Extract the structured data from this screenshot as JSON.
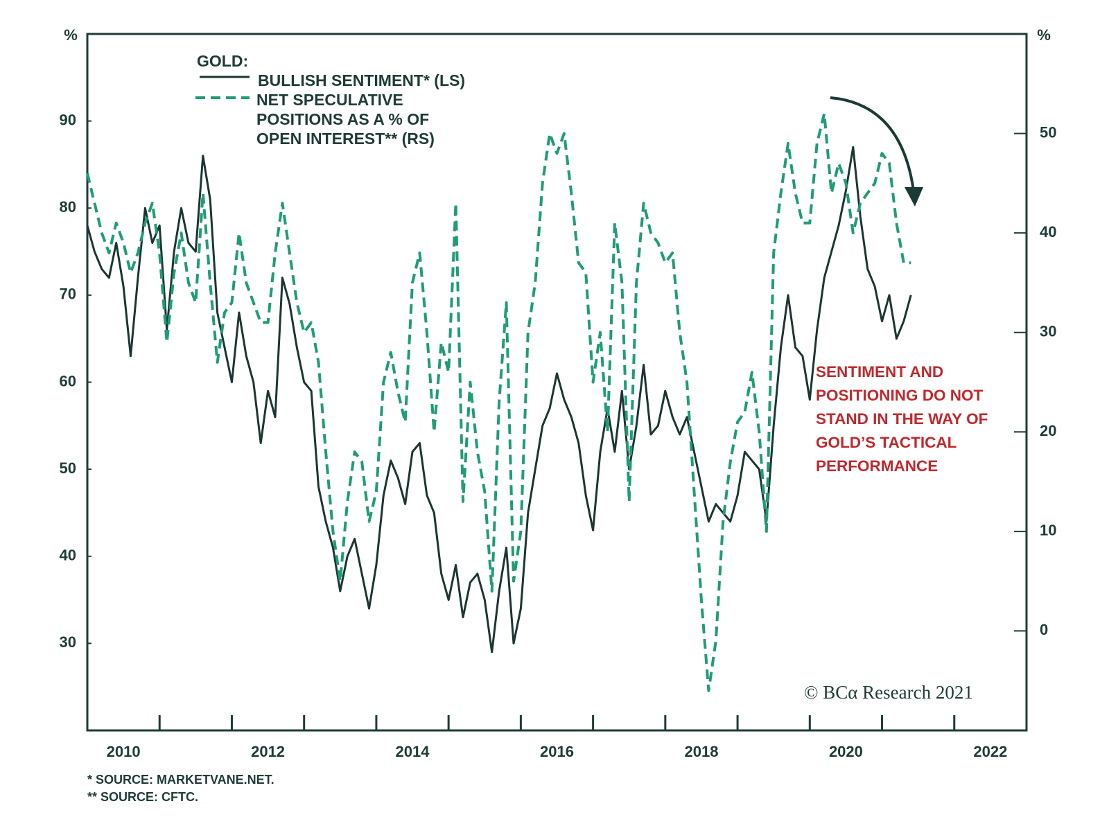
{
  "chart_data": {
    "type": "line",
    "ylabel": "%",
    "y2label": "%",
    "legend_title": "GOLD:",
    "annotation": "SENTIMENT AND POSITIONING DO NOT STAND IN THE WAY OF GOLD’S TACTICAL PERFORMANCE",
    "credit": "© BCα Research 2021",
    "footnotes": [
      "*  SOURCE: MARKETVANE.NET.",
      "** SOURCE: CFTC."
    ],
    "xlim": [
      2010,
      2023
    ],
    "xticks": [
      {
        "value": 2010.5,
        "label": "2010"
      },
      {
        "value": 2012.5,
        "label": "2012"
      },
      {
        "value": 2014.5,
        "label": "2014"
      },
      {
        "value": 2016.5,
        "label": "2016"
      },
      {
        "value": 2018.5,
        "label": "2018"
      },
      {
        "value": 2020.5,
        "label": "2020"
      },
      {
        "value": 2022.5,
        "label": "2022"
      }
    ],
    "xminor_ticks": [
      2010,
      2011,
      2012,
      2013,
      2014,
      2015,
      2016,
      2017,
      2018,
      2019,
      2020,
      2021,
      2022,
      2023
    ],
    "ylim": [
      20,
      100
    ],
    "yticks": [
      30,
      40,
      50,
      60,
      70,
      80,
      90
    ],
    "y2lim": [
      -10,
      60
    ],
    "y2ticks": [
      0,
      10,
      20,
      30,
      40,
      50
    ],
    "x": [
      2010.0,
      2010.1,
      2010.2,
      2010.3,
      2010.4,
      2010.5,
      2010.6,
      2010.7,
      2010.8,
      2010.9,
      2011.0,
      2011.1,
      2011.2,
      2011.3,
      2011.4,
      2011.5,
      2011.6,
      2011.7,
      2011.8,
      2011.9,
      2012.0,
      2012.1,
      2012.2,
      2012.3,
      2012.4,
      2012.5,
      2012.6,
      2012.7,
      2012.8,
      2012.9,
      2013.0,
      2013.1,
      2013.2,
      2013.3,
      2013.4,
      2013.5,
      2013.6,
      2013.7,
      2013.8,
      2013.9,
      2014.0,
      2014.1,
      2014.2,
      2014.3,
      2014.4,
      2014.5,
      2014.6,
      2014.7,
      2014.8,
      2014.9,
      2015.0,
      2015.1,
      2015.2,
      2015.3,
      2015.4,
      2015.5,
      2015.6,
      2015.7,
      2015.8,
      2015.9,
      2016.0,
      2016.1,
      2016.2,
      2016.3,
      2016.4,
      2016.5,
      2016.6,
      2016.7,
      2016.8,
      2016.9,
      2017.0,
      2017.1,
      2017.2,
      2017.3,
      2017.4,
      2017.5,
      2017.6,
      2017.7,
      2017.8,
      2017.9,
      2018.0,
      2018.1,
      2018.2,
      2018.3,
      2018.4,
      2018.5,
      2018.6,
      2018.7,
      2018.8,
      2018.9,
      2019.0,
      2019.1,
      2019.2,
      2019.3,
      2019.4,
      2019.5,
      2019.6,
      2019.7,
      2019.8,
      2019.9,
      2020.0,
      2020.1,
      2020.2,
      2020.3,
      2020.4,
      2020.5,
      2020.6,
      2020.7,
      2020.8,
      2020.9,
      2021.0,
      2021.1,
      2021.2,
      2021.3,
      2021.4
    ],
    "series": [
      {
        "name": "BULLISH SENTIMENT* (LS)",
        "color": "#1b3632",
        "dashed": false,
        "axis": "y",
        "values": [
          78,
          75,
          73,
          72,
          76,
          71,
          63,
          72,
          80,
          76,
          78,
          66,
          75,
          80,
          76,
          75,
          86,
          81,
          68,
          64,
          60,
          68,
          63,
          60,
          53,
          59,
          56,
          72,
          69,
          64,
          60,
          59,
          48,
          44,
          41,
          36,
          40,
          42,
          38,
          34,
          39,
          47,
          51,
          49,
          46,
          52,
          53,
          47,
          45,
          38,
          35,
          39,
          33,
          37,
          38,
          35,
          29,
          36,
          41,
          30,
          34,
          45,
          50,
          55,
          57,
          61,
          58,
          56,
          53,
          47,
          43,
          52,
          57,
          52,
          59,
          50,
          55,
          62,
          54,
          55,
          59,
          56,
          54,
          56,
          52,
          48,
          44,
          46,
          45,
          44,
          47,
          52,
          51,
          50,
          44,
          55,
          64,
          70,
          64,
          63,
          58,
          66,
          72,
          75,
          78,
          82,
          87,
          79,
          73,
          71,
          67,
          70,
          65,
          67,
          70
        ]
      },
      {
        "name": "NET SPECULATIVE POSITIONS AS A % OF OPEN INTEREST** (RS)",
        "color": "#1f9c78",
        "dashed": true,
        "axis": "y2",
        "values": [
          46,
          43,
          40,
          38,
          41,
          39,
          36,
          38,
          41,
          43,
          38,
          29,
          36,
          40,
          35,
          33,
          44,
          35,
          27,
          32,
          33,
          40,
          35,
          33,
          31,
          31,
          38,
          43,
          38,
          33,
          30,
          31,
          27,
          18,
          10,
          5,
          13,
          18,
          17,
          11,
          14,
          25,
          28,
          24,
          21,
          35,
          38,
          30,
          20,
          29,
          26,
          43,
          13,
          25,
          18,
          14,
          4,
          23,
          33,
          5,
          10,
          30,
          35,
          45,
          50,
          48,
          50,
          44,
          37,
          36,
          25,
          30,
          20,
          41,
          35,
          13,
          35,
          43,
          40,
          39,
          37,
          38,
          30,
          25,
          14,
          3,
          -6,
          -1,
          11,
          17,
          21,
          22,
          26,
          20,
          10,
          38,
          44,
          49,
          44,
          41,
          41,
          49,
          52,
          44,
          47,
          45,
          40,
          43,
          44,
          45,
          48,
          47,
          41,
          37,
          37
        ]
      }
    ]
  }
}
